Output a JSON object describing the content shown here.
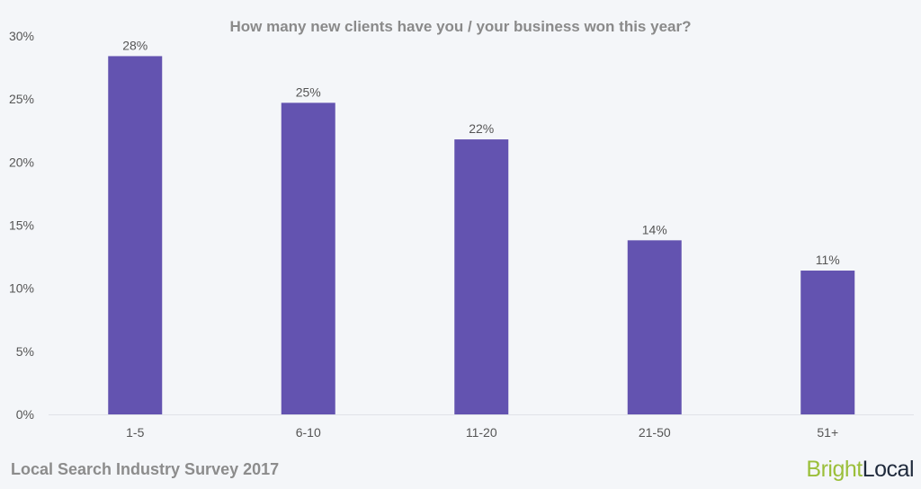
{
  "chart_data": {
    "type": "bar",
    "title": "How many new clients have you / your business won this year?",
    "categories": [
      "1-5",
      "6-10",
      "11-20",
      "21-50",
      "51+"
    ],
    "values": [
      28.4,
      24.7,
      21.8,
      13.8,
      11.4
    ],
    "data_labels": [
      "28%",
      "25%",
      "22%",
      "14%",
      "11%"
    ],
    "yticks": [
      "0%",
      "5%",
      "10%",
      "15%",
      "20%",
      "25%",
      "30%"
    ],
    "ylim": [
      0,
      30
    ],
    "xlabel": "",
    "ylabel": "",
    "grid": false,
    "bar_color": "#6353b0"
  },
  "footer": {
    "source": "Local Search Industry Survey 2017",
    "logo_bright": "Bright",
    "logo_local": "Local"
  }
}
